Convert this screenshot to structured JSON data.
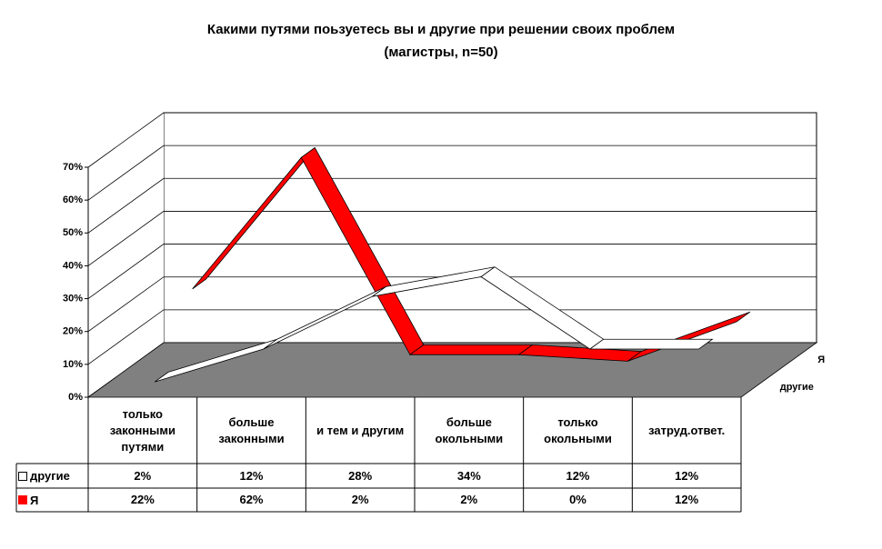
{
  "chart_data": {
    "type": "line3d",
    "title": "Какими путями поьзуетесь вы и другие при решении своих проблем",
    "subtitle": "(магистры, n=50)",
    "categories": [
      "только законными путями",
      "больше законными",
      "и тем и другим",
      "больше окольными",
      "только окольными",
      "затруд.ответ."
    ],
    "series": [
      {
        "name": "другие",
        "color": "#ffffff",
        "values": [
          2,
          12,
          28,
          34,
          12,
          12
        ],
        "value_labels": [
          "2%",
          "12%",
          "28%",
          "34%",
          "12%",
          "12%"
        ]
      },
      {
        "name": "Я",
        "color": "#ff0000",
        "values": [
          22,
          62,
          2,
          2,
          0,
          12
        ],
        "value_labels": [
          "22%",
          "62%",
          "2%",
          "2%",
          "0%",
          "12%"
        ]
      }
    ],
    "ylim": [
      0,
      70
    ],
    "yticks": [
      {
        "value": 0,
        "label": "0%"
      },
      {
        "value": 10,
        "label": "10%"
      },
      {
        "value": 20,
        "label": "20%"
      },
      {
        "value": 30,
        "label": "30%"
      },
      {
        "value": 40,
        "label": "40%"
      },
      {
        "value": 50,
        "label": "50%"
      },
      {
        "value": 60,
        "label": "60%"
      },
      {
        "value": 70,
        "label": "70%"
      }
    ],
    "grid": true,
    "floor_color": "#808080"
  }
}
